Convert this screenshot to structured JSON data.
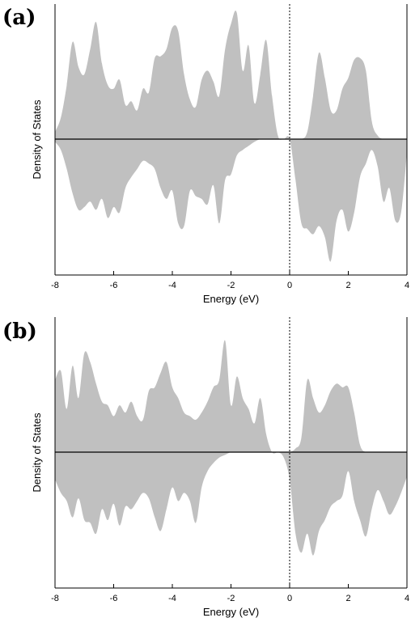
{
  "chart_data": [
    {
      "type": "area",
      "panel_label": "(a)",
      "xlabel": "Energy (eV)",
      "ylabel": "Density of States",
      "xlim": [
        -8,
        4
      ],
      "ylim": [
        -1.0,
        0.75
      ],
      "xticks": [
        -8,
        -6,
        -4,
        -2,
        0,
        2,
        4
      ],
      "fermi_level": 0,
      "fill_color": "#c0c0c0",
      "series": [
        {
          "name": "",
          "x": [
            -8.0,
            -7.8,
            -7.6,
            -7.4,
            -7.2,
            -7.0,
            -6.8,
            -6.6,
            -6.4,
            -6.2,
            -6.0,
            -5.8,
            -5.6,
            -5.4,
            -5.2,
            -5.0,
            -4.8,
            -4.6,
            -4.4,
            -4.2,
            -4.0,
            -3.8,
            -3.6,
            -3.4,
            -3.2,
            -3.0,
            -2.8,
            -2.6,
            -2.4,
            -2.2,
            -2.0,
            -1.8,
            -1.6,
            -1.4,
            -1.2,
            -1.0,
            -0.8,
            -0.6,
            -0.4,
            -0.2,
            0.0,
            0.2,
            0.4,
            0.6,
            0.8,
            1.0,
            1.2,
            1.4,
            1.6,
            1.8,
            2.0,
            2.2,
            2.4,
            2.6,
            2.8,
            3.0,
            3.2,
            3.4,
            3.6,
            3.8,
            4.0
          ],
          "values": [
            0.04,
            0.12,
            0.3,
            0.54,
            0.4,
            0.36,
            0.5,
            0.65,
            0.42,
            0.3,
            0.28,
            0.33,
            0.19,
            0.21,
            0.16,
            0.28,
            0.26,
            0.45,
            0.46,
            0.5,
            0.62,
            0.6,
            0.36,
            0.22,
            0.18,
            0.33,
            0.38,
            0.32,
            0.24,
            0.5,
            0.64,
            0.7,
            0.38,
            0.52,
            0.2,
            0.36,
            0.55,
            0.24,
            0.02,
            0.0,
            0.0,
            0.0,
            0.0,
            0.04,
            0.24,
            0.48,
            0.34,
            0.16,
            0.16,
            0.28,
            0.34,
            0.44,
            0.45,
            0.38,
            0.1,
            0.02,
            0.0,
            0.0,
            0.0,
            0.0,
            0.0
          ]
        },
        {
          "name": "",
          "x": [
            -8.0,
            -7.8,
            -7.6,
            -7.4,
            -7.2,
            -7.0,
            -6.8,
            -6.6,
            -6.4,
            -6.2,
            -6.0,
            -5.8,
            -5.6,
            -5.4,
            -5.2,
            -5.0,
            -4.8,
            -4.6,
            -4.4,
            -4.2,
            -4.0,
            -3.8,
            -3.6,
            -3.4,
            -3.2,
            -3.0,
            -2.8,
            -2.6,
            -2.4,
            -2.2,
            -2.0,
            -1.8,
            -1.6,
            -1.4,
            -1.2,
            -1.0,
            -0.8,
            -0.6,
            -0.4,
            -0.2,
            0.0,
            0.2,
            0.4,
            0.6,
            0.8,
            1.0,
            1.2,
            1.4,
            1.6,
            1.8,
            2.0,
            2.2,
            2.4,
            2.6,
            2.8,
            3.0,
            3.2,
            3.4,
            3.6,
            3.8,
            4.0
          ],
          "values": [
            -0.02,
            -0.08,
            -0.22,
            -0.4,
            -0.52,
            -0.5,
            -0.46,
            -0.52,
            -0.44,
            -0.58,
            -0.5,
            -0.54,
            -0.36,
            -0.28,
            -0.22,
            -0.16,
            -0.18,
            -0.22,
            -0.36,
            -0.44,
            -0.38,
            -0.62,
            -0.64,
            -0.38,
            -0.42,
            -0.44,
            -0.48,
            -0.34,
            -0.62,
            -0.3,
            -0.26,
            -0.12,
            -0.08,
            -0.05,
            -0.02,
            0.0,
            0.0,
            0.0,
            0.0,
            0.0,
            0.0,
            -0.3,
            -0.62,
            -0.66,
            -0.7,
            -0.64,
            -0.72,
            -0.9,
            -0.6,
            -0.52,
            -0.68,
            -0.54,
            -0.28,
            -0.18,
            -0.08,
            -0.2,
            -0.46,
            -0.36,
            -0.6,
            -0.54,
            -0.1
          ]
        }
      ]
    },
    {
      "type": "area",
      "panel_label": "(b)",
      "xlabel": "Energy (eV)",
      "ylabel": "Density of States",
      "xlim": [
        -8,
        4
      ],
      "ylim": [
        -1.0,
        0.75
      ],
      "xticks": [
        -8,
        -6,
        -4,
        -2,
        0,
        2,
        4
      ],
      "fermi_level": 0,
      "fill_color": "#c0c0c0",
      "series": [
        {
          "name": "",
          "x": [
            -8.0,
            -7.8,
            -7.6,
            -7.4,
            -7.2,
            -7.0,
            -6.8,
            -6.6,
            -6.4,
            -6.2,
            -6.0,
            -5.8,
            -5.6,
            -5.4,
            -5.2,
            -5.0,
            -4.8,
            -4.6,
            -4.4,
            -4.2,
            -4.0,
            -3.8,
            -3.6,
            -3.4,
            -3.2,
            -3.0,
            -2.8,
            -2.6,
            -2.4,
            -2.2,
            -2.0,
            -1.8,
            -1.6,
            -1.4,
            -1.2,
            -1.0,
            -0.8,
            -0.6,
            -0.4,
            -0.2,
            0.0,
            0.2,
            0.4,
            0.6,
            0.8,
            1.0,
            1.2,
            1.4,
            1.6,
            1.8,
            2.0,
            2.2,
            2.4,
            2.6,
            2.8,
            3.0,
            3.2,
            3.4,
            3.6,
            3.8,
            4.0
          ],
          "values": [
            0.4,
            0.45,
            0.24,
            0.48,
            0.3,
            0.55,
            0.5,
            0.38,
            0.28,
            0.26,
            0.2,
            0.26,
            0.22,
            0.28,
            0.2,
            0.18,
            0.34,
            0.36,
            0.44,
            0.5,
            0.36,
            0.3,
            0.22,
            0.2,
            0.18,
            0.22,
            0.28,
            0.36,
            0.4,
            0.62,
            0.26,
            0.42,
            0.3,
            0.24,
            0.16,
            0.3,
            0.1,
            0.0,
            0.0,
            0.0,
            0.0,
            0.02,
            0.08,
            0.4,
            0.3,
            0.22,
            0.26,
            0.34,
            0.38,
            0.36,
            0.36,
            0.22,
            0.04,
            0.0,
            0.0,
            0.0,
            0.0,
            0.0,
            0.0,
            0.0,
            0.0
          ]
        },
        {
          "name": "",
          "x": [
            -8.0,
            -7.8,
            -7.6,
            -7.4,
            -7.2,
            -7.0,
            -6.8,
            -6.6,
            -6.4,
            -6.2,
            -6.0,
            -5.8,
            -5.6,
            -5.4,
            -5.2,
            -5.0,
            -4.8,
            -4.6,
            -4.4,
            -4.2,
            -4.0,
            -3.8,
            -3.6,
            -3.4,
            -3.2,
            -3.0,
            -2.8,
            -2.6,
            -2.4,
            -2.2,
            -2.0,
            -1.8,
            -1.6,
            -1.4,
            -1.2,
            -1.0,
            -0.8,
            -0.6,
            -0.4,
            -0.2,
            0.0,
            0.2,
            0.4,
            0.6,
            0.8,
            1.0,
            1.2,
            1.4,
            1.6,
            1.8,
            2.0,
            2.2,
            2.4,
            2.6,
            2.8,
            3.0,
            3.2,
            3.4,
            3.6,
            3.8,
            4.0
          ],
          "values": [
            -0.2,
            -0.3,
            -0.36,
            -0.48,
            -0.34,
            -0.5,
            -0.52,
            -0.6,
            -0.42,
            -0.5,
            -0.38,
            -0.54,
            -0.4,
            -0.42,
            -0.36,
            -0.3,
            -0.34,
            -0.48,
            -0.58,
            -0.42,
            -0.26,
            -0.36,
            -0.3,
            -0.36,
            -0.52,
            -0.26,
            -0.14,
            -0.08,
            -0.04,
            -0.02,
            0.0,
            0.0,
            0.0,
            0.0,
            0.0,
            0.0,
            0.0,
            0.0,
            0.0,
            -0.04,
            -0.2,
            -0.6,
            -0.74,
            -0.6,
            -0.76,
            -0.58,
            -0.5,
            -0.4,
            -0.36,
            -0.32,
            -0.14,
            -0.36,
            -0.5,
            -0.62,
            -0.42,
            -0.28,
            -0.36,
            -0.46,
            -0.4,
            -0.3,
            -0.18
          ]
        }
      ]
    }
  ]
}
